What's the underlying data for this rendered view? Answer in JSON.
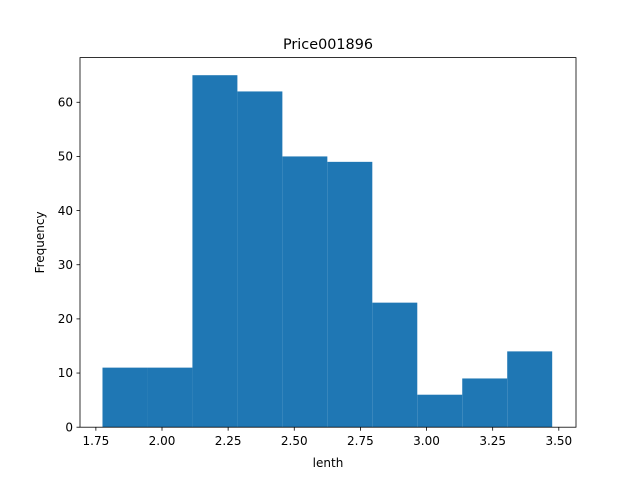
{
  "chart_data": {
    "type": "bar",
    "title": "Price001896",
    "xlabel": "lenth",
    "ylabel": "Frequency",
    "xlim": [
      1.69,
      3.565
    ],
    "ylim": [
      0,
      68.25
    ],
    "xticks": [
      1.75,
      2.0,
      2.25,
      2.5,
      2.75,
      3.0,
      3.25,
      3.5
    ],
    "xtick_labels": [
      "1.75",
      "2.00",
      "2.25",
      "2.50",
      "2.75",
      "3.00",
      "3.25",
      "3.50"
    ],
    "yticks": [
      0,
      10,
      20,
      30,
      40,
      50,
      60
    ],
    "ytick_labels": [
      "0",
      "10",
      "20",
      "30",
      "40",
      "50",
      "60"
    ],
    "bin_edges": [
      1.775,
      1.945,
      2.115,
      2.285,
      2.455,
      2.625,
      2.795,
      2.965,
      3.135,
      3.305,
      3.475
    ],
    "values": [
      11,
      11,
      65,
      62,
      50,
      49,
      23,
      6,
      9,
      14
    ],
    "bar_color": "#1f77b4",
    "grid": false,
    "legend": "none"
  }
}
